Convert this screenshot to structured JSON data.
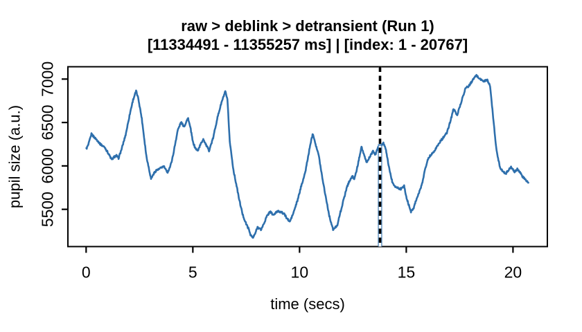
{
  "chart_data": {
    "type": "line",
    "title": "raw > deblink > detransient (Run 1)",
    "subtitle": "[11334491 - 11355257 ms] | [index: 1 - 20767]",
    "xlabel": "time (secs)",
    "ylabel": "pupil size (a.u.)",
    "xlim": [
      -0.854,
      21.61
    ],
    "ylim": [
      5071,
      7142
    ],
    "x_ticks": [
      0,
      5,
      10,
      15,
      20
    ],
    "x_tick_labels": [
      "0",
      "5",
      "10",
      "15",
      "20"
    ],
    "y_ticks": [
      5500,
      6000,
      6500,
      7000
    ],
    "y_tick_labels": [
      "5500",
      "6000",
      "6500",
      "7000"
    ],
    "grid": false,
    "legend": "none",
    "line_color": "#2e6fac",
    "box_color": "#000000",
    "noise_amplitude": 11,
    "marker": {
      "time": 13.77,
      "dash_color": "#000000",
      "casing_color": "#ffffff",
      "stem_color": "#2e6fac",
      "stem_top_value": 6250,
      "style": "vertical black dashed line over solid blue stem, full plot height"
    },
    "series": [
      {
        "name": "pupil_size",
        "points": [
          [
            0.01,
            6198
          ],
          [
            0.1,
            6240
          ],
          [
            0.25,
            6368
          ],
          [
            0.38,
            6330
          ],
          [
            0.52,
            6296
          ],
          [
            0.66,
            6252
          ],
          [
            0.88,
            6212
          ],
          [
            1.05,
            6140
          ],
          [
            1.2,
            6072
          ],
          [
            1.32,
            6105
          ],
          [
            1.42,
            6118
          ],
          [
            1.52,
            6090
          ],
          [
            1.66,
            6192
          ],
          [
            1.85,
            6358
          ],
          [
            2.07,
            6623
          ],
          [
            2.2,
            6762
          ],
          [
            2.34,
            6862
          ],
          [
            2.45,
            6772
          ],
          [
            2.61,
            6543
          ],
          [
            2.82,
            6118
          ],
          [
            3.04,
            5852
          ],
          [
            3.16,
            5908
          ],
          [
            3.28,
            5948
          ],
          [
            3.42,
            5962
          ],
          [
            3.55,
            5985
          ],
          [
            3.64,
            5994
          ],
          [
            3.74,
            5950
          ],
          [
            3.82,
            5928
          ],
          [
            3.95,
            6000
          ],
          [
            4.07,
            6118
          ],
          [
            4.29,
            6410
          ],
          [
            4.45,
            6503
          ],
          [
            4.55,
            6466
          ],
          [
            4.62,
            6462
          ],
          [
            4.7,
            6520
          ],
          [
            4.78,
            6548
          ],
          [
            4.9,
            6420
          ],
          [
            5.0,
            6278
          ],
          [
            5.1,
            6212
          ],
          [
            5.22,
            6172
          ],
          [
            5.35,
            6242
          ],
          [
            5.49,
            6310
          ],
          [
            5.62,
            6240
          ],
          [
            5.76,
            6177
          ],
          [
            5.95,
            6320
          ],
          [
            6.14,
            6543
          ],
          [
            6.34,
            6728
          ],
          [
            6.52,
            6856
          ],
          [
            6.62,
            6760
          ],
          [
            6.73,
            6280
          ],
          [
            6.9,
            5954
          ],
          [
            7.05,
            5770
          ],
          [
            7.17,
            5615
          ],
          [
            7.33,
            5442
          ],
          [
            7.5,
            5330
          ],
          [
            7.6,
            5283
          ],
          [
            7.7,
            5210
          ],
          [
            7.81,
            5169
          ],
          [
            7.92,
            5220
          ],
          [
            8.03,
            5296
          ],
          [
            8.12,
            5280
          ],
          [
            8.19,
            5264
          ],
          [
            8.32,
            5330
          ],
          [
            8.46,
            5416
          ],
          [
            8.62,
            5477
          ],
          [
            8.72,
            5446
          ],
          [
            8.78,
            5434
          ],
          [
            8.9,
            5464
          ],
          [
            9.0,
            5482
          ],
          [
            9.12,
            5468
          ],
          [
            9.27,
            5450
          ],
          [
            9.4,
            5400
          ],
          [
            9.54,
            5355
          ],
          [
            9.7,
            5450
          ],
          [
            9.92,
            5615
          ],
          [
            10.1,
            5790
          ],
          [
            10.25,
            5907
          ],
          [
            10.4,
            6105
          ],
          [
            10.55,
            6305
          ],
          [
            10.63,
            6371
          ],
          [
            10.75,
            6252
          ],
          [
            10.9,
            6118
          ],
          [
            11.05,
            5890
          ],
          [
            11.17,
            5720
          ],
          [
            11.39,
            5428
          ],
          [
            11.57,
            5264
          ],
          [
            11.68,
            5292
          ],
          [
            11.77,
            5322
          ],
          [
            11.9,
            5452
          ],
          [
            12.04,
            5587
          ],
          [
            12.2,
            5742
          ],
          [
            12.31,
            5813
          ],
          [
            12.47,
            5879
          ],
          [
            12.58,
            5853
          ],
          [
            12.72,
            6000
          ],
          [
            12.9,
            6224
          ],
          [
            13.02,
            6122
          ],
          [
            13.15,
            6038
          ],
          [
            13.3,
            6112
          ],
          [
            13.44,
            6166
          ],
          [
            13.55,
            6130
          ],
          [
            13.66,
            6202
          ],
          [
            13.77,
            6244
          ],
          [
            13.85,
            6232
          ],
          [
            13.93,
            6262
          ],
          [
            14.05,
            6180
          ],
          [
            14.15,
            6038
          ],
          [
            14.27,
            5890
          ],
          [
            14.36,
            5800
          ],
          [
            14.53,
            5752
          ],
          [
            14.64,
            5744
          ],
          [
            14.74,
            5734
          ],
          [
            14.82,
            5756
          ],
          [
            14.9,
            5768
          ],
          [
            15.0,
            5640
          ],
          [
            15.07,
            5587
          ],
          [
            15.22,
            5473
          ],
          [
            15.35,
            5522
          ],
          [
            15.45,
            5600
          ],
          [
            15.6,
            5692
          ],
          [
            15.72,
            5774
          ],
          [
            15.9,
            5982
          ],
          [
            16.04,
            6092
          ],
          [
            16.2,
            6142
          ],
          [
            16.31,
            6172
          ],
          [
            16.45,
            6226
          ],
          [
            16.58,
            6278
          ],
          [
            16.75,
            6332
          ],
          [
            16.9,
            6379
          ],
          [
            17.07,
            6517
          ],
          [
            17.21,
            6655
          ],
          [
            17.3,
            6622
          ],
          [
            17.39,
            6589
          ],
          [
            17.55,
            6716
          ],
          [
            17.77,
            6893
          ],
          [
            17.93,
            6920
          ],
          [
            18.06,
            6968
          ],
          [
            18.18,
            7012
          ],
          [
            18.29,
            7042
          ],
          [
            18.4,
            7012
          ],
          [
            18.47,
            7000
          ],
          [
            18.55,
            6984
          ],
          [
            18.63,
            6973
          ],
          [
            18.72,
            6984
          ],
          [
            18.8,
            6989
          ],
          [
            18.93,
            6915
          ],
          [
            19.07,
            6557
          ],
          [
            19.23,
            6172
          ],
          [
            19.39,
            5986
          ],
          [
            19.55,
            5928
          ],
          [
            19.66,
            5911
          ],
          [
            19.78,
            5950
          ],
          [
            19.91,
            5986
          ],
          [
            20.07,
            5928
          ],
          [
            20.22,
            5966
          ],
          [
            20.32,
            5932
          ],
          [
            20.42,
            5885
          ],
          [
            20.58,
            5840
          ],
          [
            20.72,
            5806
          ]
        ]
      }
    ]
  }
}
